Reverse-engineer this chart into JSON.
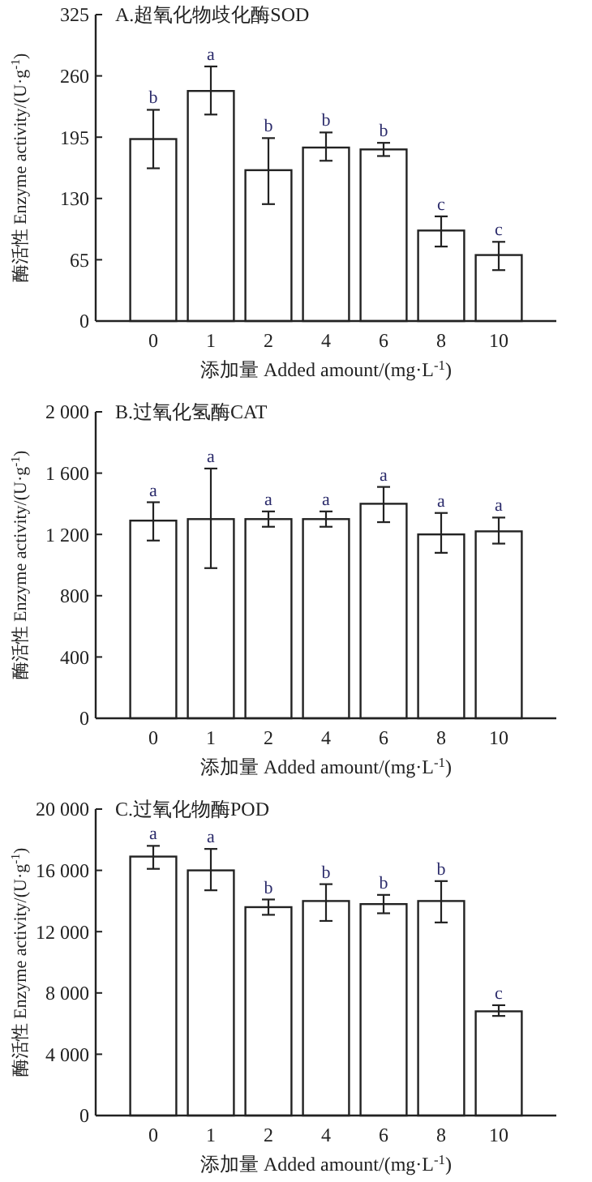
{
  "chart_data": [
    {
      "type": "bar",
      "title": "A.超氧化物歧化酶SOD",
      "xlabel": "添加量 Added amount/(mg·L$^{-1}$)",
      "ylabel": "酶活性 Enzyme activity/(U·g$^{-1}$)",
      "categories": [
        "0",
        "1",
        "2",
        "4",
        "6",
        "8",
        "10"
      ],
      "values": [
        193,
        244,
        160,
        184,
        182,
        96,
        70
      ],
      "errors": [
        [
          162,
          224
        ],
        [
          219,
          270
        ],
        [
          124,
          194
        ],
        [
          170,
          200
        ],
        [
          175,
          189
        ],
        [
          79,
          111
        ],
        [
          54,
          84
        ]
      ],
      "color": "#ffffff",
      "ylim": [
        0,
        325
      ],
      "yticks": [
        0,
        65,
        130,
        195,
        260,
        325
      ],
      "grid": false,
      "annotations": [
        {
          "text": "b",
          "x": "0",
          "y": 224
        },
        {
          "text": "a",
          "x": "1",
          "y": 270
        },
        {
          "text": "b",
          "x": "2",
          "y": 194
        },
        {
          "text": "b",
          "x": "4",
          "y": 200
        },
        {
          "text": "b",
          "x": "6",
          "y": 189
        },
        {
          "text": "c",
          "x": "8",
          "y": 111
        },
        {
          "text": "c",
          "x": "10",
          "y": 84
        }
      ]
    },
    {
      "type": "bar",
      "title": "B.过氧化氢酶CAT",
      "xlabel": "添加量 Added amount/(mg·L$^{-1}$)",
      "ylabel": "酶活性 Enzyme activity/(U·g$^{-1}$)",
      "categories": [
        "0",
        "1",
        "2",
        "4",
        "6",
        "8",
        "10"
      ],
      "values": [
        1290,
        1300,
        1300,
        1300,
        1400,
        1200,
        1220
      ],
      "errors": [
        [
          1160,
          1410
        ],
        [
          980,
          1630
        ],
        [
          1250,
          1350
        ],
        [
          1250,
          1350
        ],
        [
          1280,
          1510
        ],
        [
          1080,
          1340
        ],
        [
          1140,
          1310
        ]
      ],
      "color": "#ffffff",
      "ylim": [
        0,
        2000
      ],
      "yticks": [
        0,
        400,
        800,
        {
          "value": 1200,
          "label": "1 200"
        },
        {
          "value": 1600,
          "label": "1 600"
        },
        {
          "value": 2000,
          "label": "2 000"
        }
      ],
      "grid": false,
      "annotations": [
        {
          "text": "a",
          "x": "0",
          "y": 1410
        },
        {
          "text": "a",
          "x": "1",
          "y": 1630
        },
        {
          "text": "a",
          "x": "2",
          "y": 1350
        },
        {
          "text": "a",
          "x": "4",
          "y": 1350
        },
        {
          "text": "a",
          "x": "6",
          "y": 1510
        },
        {
          "text": "a",
          "x": "8",
          "y": 1340
        },
        {
          "text": "a",
          "x": "10",
          "y": 1310
        }
      ]
    },
    {
      "type": "bar",
      "title": "C.过氧化物酶POD",
      "xlabel": "添加量 Added amount/(mg·L$^{-1}$)",
      "ylabel": "酶活性 Enzyme activity/(U·g$^{-1}$)",
      "categories": [
        "0",
        "1",
        "2",
        "4",
        "6",
        "8",
        "10"
      ],
      "values": [
        16900,
        16000,
        13600,
        14000,
        13800,
        14000,
        6800
      ],
      "errors": [
        [
          16100,
          17600
        ],
        [
          14700,
          17400
        ],
        [
          13100,
          14100
        ],
        [
          12700,
          15100
        ],
        [
          13200,
          14400
        ],
        [
          12600,
          15300
        ],
        [
          6500,
          7200
        ]
      ],
      "color": "#ffffff",
      "ylim": [
        0,
        20000
      ],
      "yticks": [
        0,
        {
          "value": 4000,
          "label": "4 000"
        },
        {
          "value": 8000,
          "label": "8 000"
        },
        {
          "value": 12000,
          "label": "12 000"
        },
        {
          "value": 16000,
          "label": "16 000"
        },
        {
          "value": 20000,
          "label": "20 000"
        }
      ],
      "grid": false,
      "annotations": [
        {
          "text": "a",
          "x": "0",
          "y": 17600
        },
        {
          "text": "a",
          "x": "1",
          "y": 17400
        },
        {
          "text": "b",
          "x": "2",
          "y": 14100
        },
        {
          "text": "b",
          "x": "4",
          "y": 15100
        },
        {
          "text": "b",
          "x": "6",
          "y": 14400
        },
        {
          "text": "b",
          "x": "8",
          "y": 15300
        },
        {
          "text": "c",
          "x": "10",
          "y": 7200
        }
      ]
    }
  ]
}
